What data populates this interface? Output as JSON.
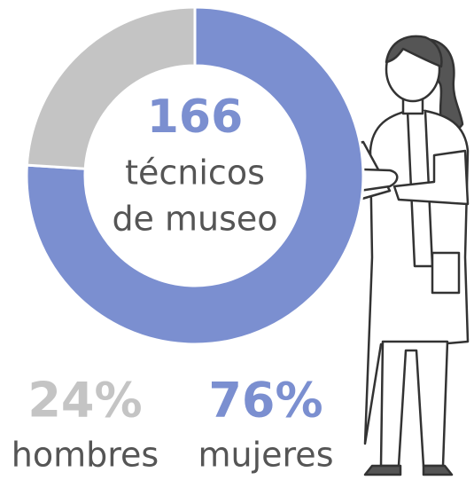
{
  "chart_data": {
    "type": "donut",
    "categories": [
      "mujeres",
      "hombres"
    ],
    "values": [
      76,
      24
    ],
    "value_labels": [
      "76%",
      "24%"
    ],
    "colors": [
      "#7b8fd0",
      "#c4c4c4"
    ],
    "total": 166,
    "center_lines": [
      "técnicos",
      "de museo"
    ]
  }
}
